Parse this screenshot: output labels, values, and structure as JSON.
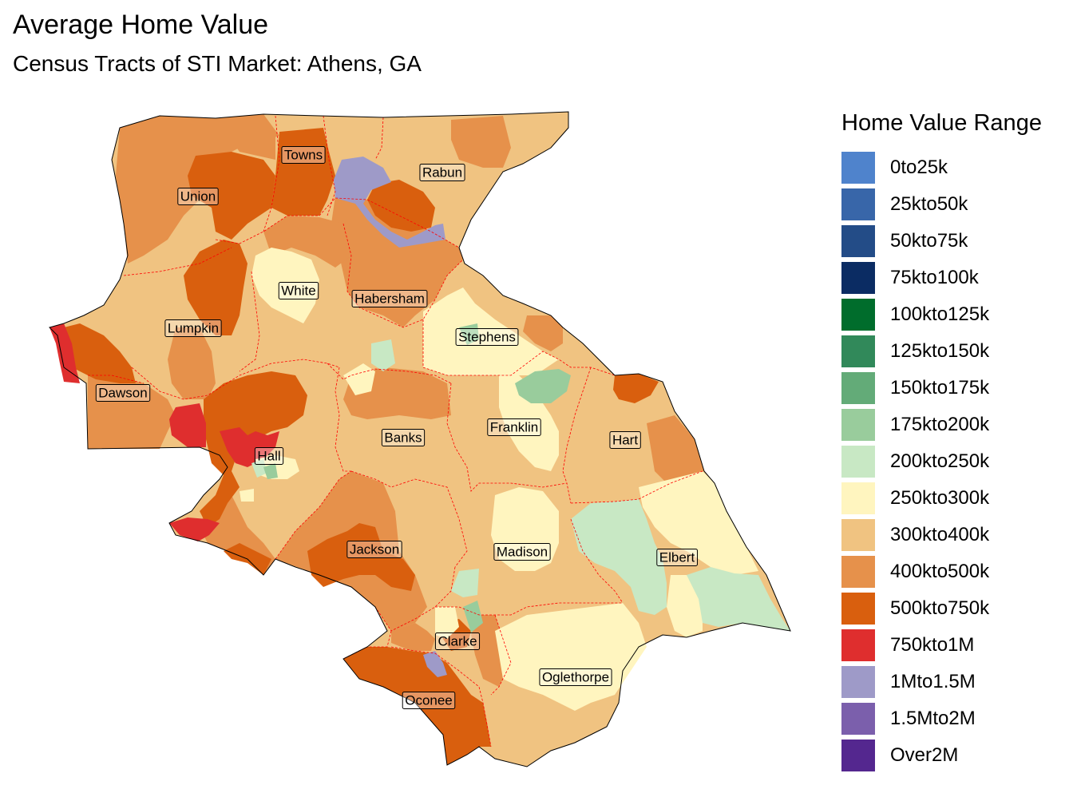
{
  "title": "Average Home Value",
  "subtitle": "Census Tracts of STI Market: Athens, GA",
  "legend": {
    "title": "Home Value Range",
    "items": [
      {
        "label": "0to25k",
        "color": "#4f83cc"
      },
      {
        "label": "25kto50k",
        "color": "#3866a9"
      },
      {
        "label": "50kto75k",
        "color": "#234c87"
      },
      {
        "label": "75kto100k",
        "color": "#0b2c63"
      },
      {
        "label": "100kto125k",
        "color": "#006d2c"
      },
      {
        "label": "125kto150k",
        "color": "#31895a"
      },
      {
        "label": "150kto175k",
        "color": "#63ab78"
      },
      {
        "label": "175kto200k",
        "color": "#99cc9c"
      },
      {
        "label": "200kto250k",
        "color": "#c8e8c4"
      },
      {
        "label": "250kto300k",
        "color": "#fff5bf"
      },
      {
        "label": "300kto400k",
        "color": "#f0c381"
      },
      {
        "label": "400kto500k",
        "color": "#e6914b"
      },
      {
        "label": "500kto750k",
        "color": "#d95f0e"
      },
      {
        "label": "750kto1M",
        "color": "#df2e2e"
      },
      {
        "label": "1Mto1.5M",
        "color": "#9e9ac8"
      },
      {
        "label": "1.5Mto2M",
        "color": "#7b5fac"
      },
      {
        "label": "Over2M",
        "color": "#54278f"
      }
    ]
  },
  "counties": [
    {
      "name": "Towns"
    },
    {
      "name": "Rabun"
    },
    {
      "name": "Union"
    },
    {
      "name": "White"
    },
    {
      "name": "Habersham"
    },
    {
      "name": "Lumpkin"
    },
    {
      "name": "Stephens"
    },
    {
      "name": "Dawson"
    },
    {
      "name": "Franklin"
    },
    {
      "name": "Banks"
    },
    {
      "name": "Hart"
    },
    {
      "name": "Hall"
    },
    {
      "name": "Madison"
    },
    {
      "name": "Elbert"
    },
    {
      "name": "Jackson"
    },
    {
      "name": "Clarke"
    },
    {
      "name": "Oglethorpe"
    },
    {
      "name": "Oconee"
    }
  ]
}
